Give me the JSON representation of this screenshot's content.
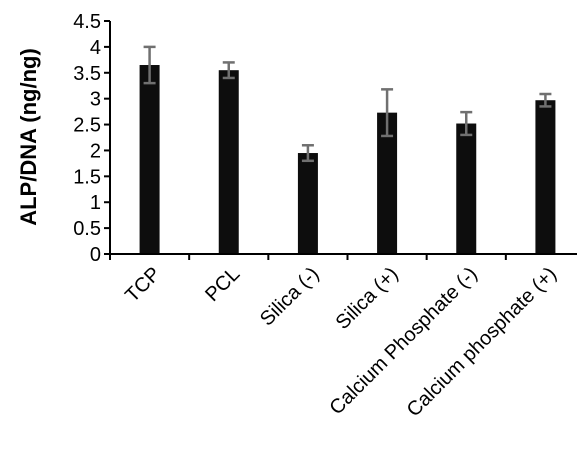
{
  "chart_data": {
    "type": "bar",
    "title": "",
    "xlabel": "",
    "ylabel": "ALP/DNA (ng/ng)",
    "ylim": [
      0,
      4.5
    ],
    "yticks": [
      0,
      0.5,
      1,
      1.5,
      2,
      2.5,
      3,
      3.5,
      4,
      4.5
    ],
    "ytick_labels": [
      "0",
      "0.5",
      "1",
      "1.5",
      "2",
      "2.5",
      "3",
      "3.5",
      "4",
      "4.5"
    ],
    "categories": [
      "TCP",
      "PCL",
      "Silica (-)",
      "Silica (+)",
      "Calcium Phosphate (-)",
      "Calcium phosphate (+)"
    ],
    "values": [
      3.65,
      3.55,
      1.95,
      2.73,
      2.52,
      2.97
    ],
    "errors": [
      0.35,
      0.15,
      0.15,
      0.45,
      0.22,
      0.12
    ],
    "grid": false,
    "legend": "none",
    "colors": {
      "bar": "#0d0d0d",
      "error_bar": "#707070",
      "axis": "#000000"
    }
  }
}
